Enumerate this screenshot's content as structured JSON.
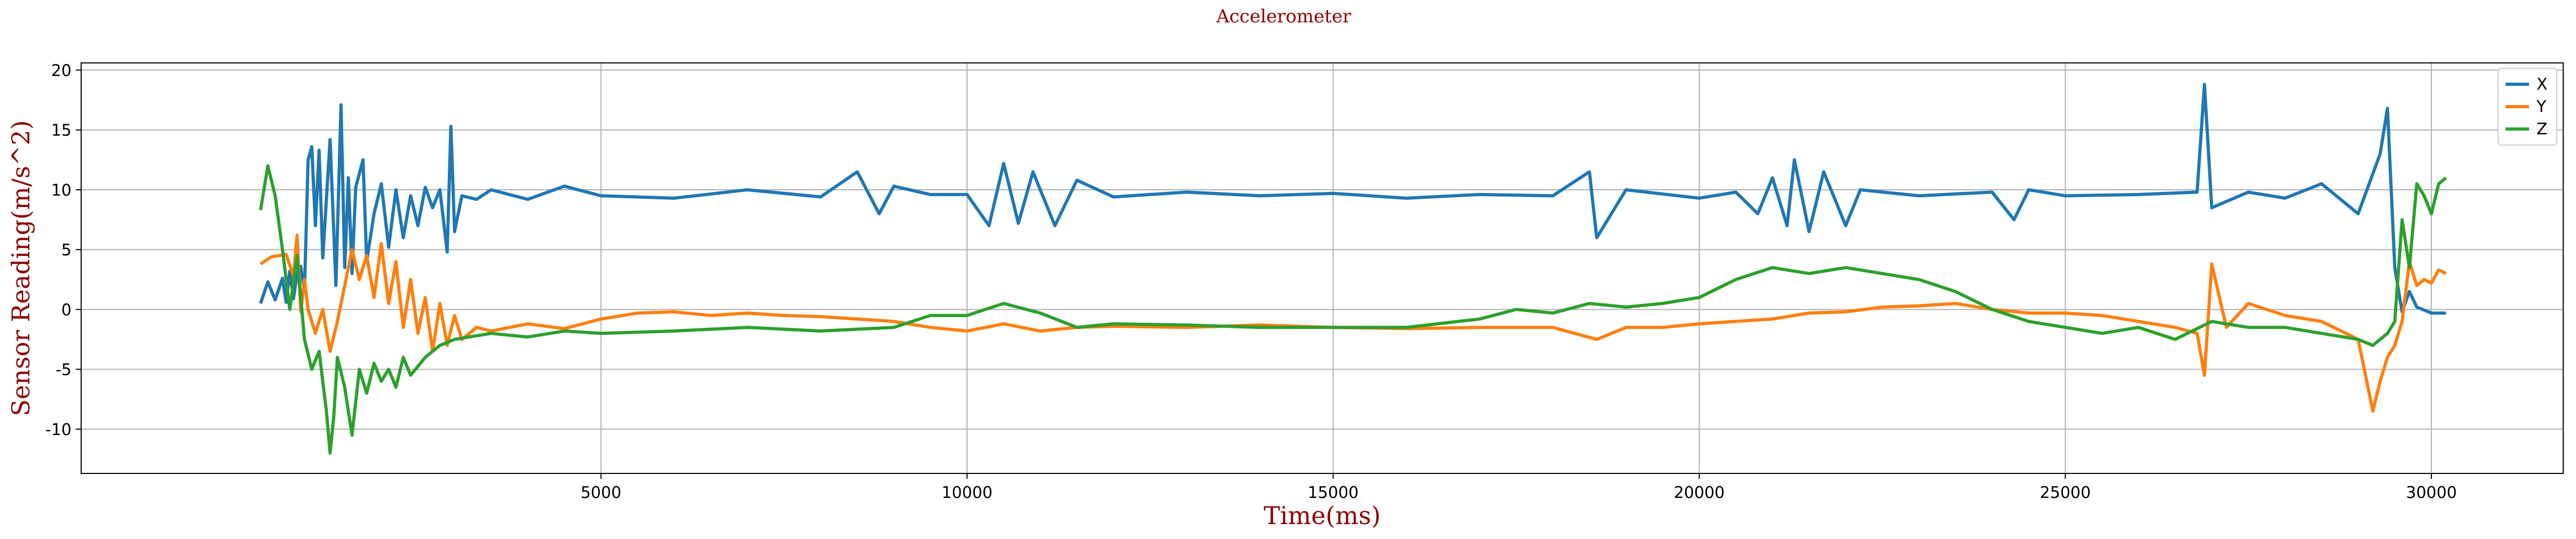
{
  "chart_data": {
    "type": "line",
    "title": "Accelerometer",
    "xlabel": "Time(ms)",
    "ylabel": "Sensor Reading(m/s^2)",
    "xlim": [
      -2100,
      31800
    ],
    "ylim": [
      -13.7,
      20.6
    ],
    "x_ticks": [
      5000,
      10000,
      15000,
      20000,
      25000,
      30000
    ],
    "y_ticks": [
      -10,
      -5,
      0,
      5,
      10,
      15,
      20
    ],
    "grid": true,
    "legend_position": "top-right",
    "colors": {
      "X": "#1f77b4",
      "Y": "#ff7f0e",
      "Z": "#2ca02c",
      "title": "#8b0000"
    },
    "series": [
      {
        "name": "X",
        "color": "#1f77b4",
        "points": [
          [
            350,
            0.5
          ],
          [
            450,
            2.3
          ],
          [
            550,
            0.8
          ],
          [
            650,
            2.6
          ],
          [
            700,
            0.6
          ],
          [
            750,
            3.2
          ],
          [
            800,
            0.9
          ],
          [
            850,
            3.0
          ],
          [
            900,
            3.6
          ],
          [
            950,
            1.5
          ],
          [
            1000,
            12.5
          ],
          [
            1050,
            13.6
          ],
          [
            1100,
            7.0
          ],
          [
            1150,
            13.3
          ],
          [
            1200,
            4.3
          ],
          [
            1300,
            14.2
          ],
          [
            1380,
            2.0
          ],
          [
            1450,
            17.1
          ],
          [
            1500,
            3.5
          ],
          [
            1550,
            11.0
          ],
          [
            1600,
            3.0
          ],
          [
            1650,
            10.2
          ],
          [
            1750,
            12.5
          ],
          [
            1800,
            4.0
          ],
          [
            1900,
            8.0
          ],
          [
            2000,
            10.5
          ],
          [
            2100,
            5.2
          ],
          [
            2200,
            10.0
          ],
          [
            2300,
            6.0
          ],
          [
            2400,
            9.5
          ],
          [
            2500,
            7.0
          ],
          [
            2600,
            10.2
          ],
          [
            2700,
            8.5
          ],
          [
            2800,
            10.0
          ],
          [
            2900,
            4.8
          ],
          [
            2950,
            15.3
          ],
          [
            3000,
            6.5
          ],
          [
            3100,
            9.5
          ],
          [
            3300,
            9.2
          ],
          [
            3500,
            10.0
          ],
          [
            4000,
            9.2
          ],
          [
            4500,
            10.3
          ],
          [
            5000,
            9.5
          ],
          [
            6000,
            9.3
          ],
          [
            7000,
            10.0
          ],
          [
            8000,
            9.4
          ],
          [
            8500,
            11.5
          ],
          [
            8800,
            8.0
          ],
          [
            9000,
            10.3
          ],
          [
            9500,
            9.6
          ],
          [
            10000,
            9.6
          ],
          [
            10300,
            7.0
          ],
          [
            10500,
            12.2
          ],
          [
            10700,
            7.2
          ],
          [
            10900,
            11.5
          ],
          [
            11200,
            7.0
          ],
          [
            11500,
            10.8
          ],
          [
            12000,
            9.4
          ],
          [
            13000,
            9.8
          ],
          [
            14000,
            9.5
          ],
          [
            15000,
            9.7
          ],
          [
            16000,
            9.3
          ],
          [
            17000,
            9.6
          ],
          [
            18000,
            9.5
          ],
          [
            18500,
            11.5
          ],
          [
            18600,
            6.0
          ],
          [
            18800,
            8.0
          ],
          [
            19000,
            10.0
          ],
          [
            20000,
            9.3
          ],
          [
            20500,
            9.8
          ],
          [
            20800,
            8.0
          ],
          [
            21000,
            11.0
          ],
          [
            21200,
            7.0
          ],
          [
            21300,
            12.5
          ],
          [
            21500,
            6.5
          ],
          [
            21700,
            11.5
          ],
          [
            22000,
            7.0
          ],
          [
            22200,
            10.0
          ],
          [
            23000,
            9.5
          ],
          [
            24000,
            9.8
          ],
          [
            24300,
            7.5
          ],
          [
            24500,
            10.0
          ],
          [
            25000,
            9.5
          ],
          [
            26000,
            9.6
          ],
          [
            26800,
            9.8
          ],
          [
            26900,
            18.8
          ],
          [
            27000,
            8.5
          ],
          [
            27500,
            9.8
          ],
          [
            28000,
            9.3
          ],
          [
            28500,
            10.5
          ],
          [
            29000,
            8.0
          ],
          [
            29300,
            13.0
          ],
          [
            29400,
            16.8
          ],
          [
            29500,
            3.5
          ],
          [
            29600,
            -0.2
          ],
          [
            29700,
            1.5
          ],
          [
            29800,
            0.2
          ],
          [
            30000,
            -0.3
          ],
          [
            30200,
            -0.3
          ]
        ]
      },
      {
        "name": "Y",
        "color": "#ff7f0e",
        "points": [
          [
            350,
            3.8
          ],
          [
            500,
            4.4
          ],
          [
            700,
            4.6
          ],
          [
            800,
            2.8
          ],
          [
            850,
            6.2
          ],
          [
            900,
            -0.2
          ],
          [
            950,
            2.5
          ],
          [
            1000,
            0.0
          ],
          [
            1100,
            -2.0
          ],
          [
            1200,
            0.0
          ],
          [
            1300,
            -3.5
          ],
          [
            1400,
            -1.0
          ],
          [
            1500,
            2.0
          ],
          [
            1600,
            5.0
          ],
          [
            1700,
            2.5
          ],
          [
            1800,
            4.5
          ],
          [
            1900,
            1.0
          ],
          [
            2000,
            5.5
          ],
          [
            2100,
            0.5
          ],
          [
            2200,
            4.0
          ],
          [
            2300,
            -1.5
          ],
          [
            2400,
            2.5
          ],
          [
            2500,
            -2.0
          ],
          [
            2600,
            1.0
          ],
          [
            2700,
            -3.5
          ],
          [
            2800,
            0.5
          ],
          [
            2900,
            -3.0
          ],
          [
            3000,
            -0.5
          ],
          [
            3100,
            -2.5
          ],
          [
            3300,
            -1.5
          ],
          [
            3500,
            -1.8
          ],
          [
            4000,
            -1.2
          ],
          [
            4500,
            -1.6
          ],
          [
            5000,
            -0.8
          ],
          [
            5500,
            -0.3
          ],
          [
            6000,
            -0.2
          ],
          [
            6500,
            -0.5
          ],
          [
            7000,
            -0.3
          ],
          [
            7500,
            -0.5
          ],
          [
            8000,
            -0.6
          ],
          [
            8500,
            -0.8
          ],
          [
            9000,
            -1.0
          ],
          [
            9500,
            -1.5
          ],
          [
            10000,
            -1.8
          ],
          [
            10500,
            -1.2
          ],
          [
            11000,
            -1.8
          ],
          [
            11500,
            -1.5
          ],
          [
            12000,
            -1.4
          ],
          [
            13000,
            -1.5
          ],
          [
            14000,
            -1.3
          ],
          [
            15000,
            -1.5
          ],
          [
            16000,
            -1.6
          ],
          [
            17000,
            -1.5
          ],
          [
            18000,
            -1.5
          ],
          [
            18600,
            -2.5
          ],
          [
            19000,
            -1.5
          ],
          [
            19500,
            -1.5
          ],
          [
            20000,
            -1.2
          ],
          [
            21000,
            -0.8
          ],
          [
            21500,
            -0.3
          ],
          [
            22000,
            -0.2
          ],
          [
            22500,
            0.2
          ],
          [
            23000,
            0.3
          ],
          [
            23500,
            0.5
          ],
          [
            24000,
            0.0
          ],
          [
            24500,
            -0.3
          ],
          [
            25000,
            -0.3
          ],
          [
            25500,
            -0.5
          ],
          [
            26000,
            -1.0
          ],
          [
            26500,
            -1.5
          ],
          [
            26800,
            -2.0
          ],
          [
            26900,
            -5.5
          ],
          [
            27000,
            3.8
          ],
          [
            27200,
            -1.5
          ],
          [
            27500,
            0.5
          ],
          [
            28000,
            -0.5
          ],
          [
            28500,
            -1.0
          ],
          [
            29000,
            -2.5
          ],
          [
            29200,
            -8.5
          ],
          [
            29300,
            -6.0
          ],
          [
            29400,
            -4.0
          ],
          [
            29500,
            -3.0
          ],
          [
            29600,
            -1.0
          ],
          [
            29700,
            4.0
          ],
          [
            29800,
            2.0
          ],
          [
            29900,
            2.5
          ],
          [
            30000,
            2.2
          ],
          [
            30100,
            3.3
          ],
          [
            30200,
            3.0
          ]
        ]
      },
      {
        "name": "Z",
        "color": "#2ca02c",
        "points": [
          [
            350,
            8.3
          ],
          [
            450,
            12.0
          ],
          [
            550,
            9.5
          ],
          [
            650,
            5.0
          ],
          [
            750,
            0.0
          ],
          [
            850,
            4.5
          ],
          [
            950,
            -2.5
          ],
          [
            1050,
            -5.0
          ],
          [
            1150,
            -3.5
          ],
          [
            1250,
            -8.5
          ],
          [
            1300,
            -12.0
          ],
          [
            1350,
            -9.0
          ],
          [
            1400,
            -4.0
          ],
          [
            1500,
            -6.5
          ],
          [
            1600,
            -10.5
          ],
          [
            1700,
            -5.0
          ],
          [
            1800,
            -7.0
          ],
          [
            1900,
            -4.5
          ],
          [
            2000,
            -6.0
          ],
          [
            2100,
            -5.0
          ],
          [
            2200,
            -6.5
          ],
          [
            2300,
            -4.0
          ],
          [
            2400,
            -5.5
          ],
          [
            2600,
            -4.0
          ],
          [
            2800,
            -3.0
          ],
          [
            3000,
            -2.5
          ],
          [
            3500,
            -2.0
          ],
          [
            4000,
            -2.3
          ],
          [
            4500,
            -1.8
          ],
          [
            5000,
            -2.0
          ],
          [
            6000,
            -1.8
          ],
          [
            7000,
            -1.5
          ],
          [
            8000,
            -1.8
          ],
          [
            9000,
            -1.5
          ],
          [
            9500,
            -0.5
          ],
          [
            10000,
            -0.5
          ],
          [
            10500,
            0.5
          ],
          [
            11000,
            -0.3
          ],
          [
            11500,
            -1.5
          ],
          [
            12000,
            -1.2
          ],
          [
            13000,
            -1.3
          ],
          [
            14000,
            -1.5
          ],
          [
            15000,
            -1.5
          ],
          [
            16000,
            -1.5
          ],
          [
            17000,
            -0.8
          ],
          [
            17500,
            0.0
          ],
          [
            18000,
            -0.3
          ],
          [
            18500,
            0.5
          ],
          [
            19000,
            0.2
          ],
          [
            19500,
            0.5
          ],
          [
            20000,
            1.0
          ],
          [
            20500,
            2.5
          ],
          [
            21000,
            3.5
          ],
          [
            21500,
            3.0
          ],
          [
            22000,
            3.5
          ],
          [
            22500,
            3.0
          ],
          [
            23000,
            2.5
          ],
          [
            23500,
            1.5
          ],
          [
            24000,
            0.0
          ],
          [
            24500,
            -1.0
          ],
          [
            25000,
            -1.5
          ],
          [
            25500,
            -2.0
          ],
          [
            26000,
            -1.5
          ],
          [
            26500,
            -2.5
          ],
          [
            27000,
            -1.0
          ],
          [
            27500,
            -1.5
          ],
          [
            28000,
            -1.5
          ],
          [
            28500,
            -2.0
          ],
          [
            29000,
            -2.5
          ],
          [
            29200,
            -3.0
          ],
          [
            29400,
            -2.0
          ],
          [
            29500,
            -1.0
          ],
          [
            29600,
            7.5
          ],
          [
            29700,
            3.5
          ],
          [
            29800,
            10.5
          ],
          [
            29900,
            9.5
          ],
          [
            30000,
            8.0
          ],
          [
            30100,
            10.5
          ],
          [
            30200,
            11.0
          ]
        ]
      }
    ]
  }
}
